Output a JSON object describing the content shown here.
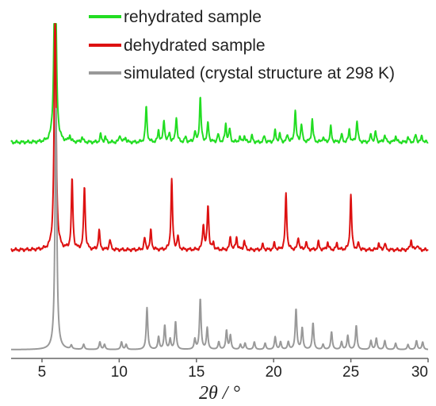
{
  "chart_data": {
    "type": "line",
    "xlabel": "2θ / °",
    "ylabel": "",
    "xlim": [
      3,
      30
    ],
    "x_ticks": [
      5,
      10,
      15,
      20,
      25,
      30
    ],
    "legend_position": "top-right",
    "grid": false,
    "y_ticks_shown": false,
    "series": [
      {
        "name": "rehydrated sample",
        "color": "#22dd22",
        "baseline": 0.04,
        "peaks": [
          [
            5.85,
            2.0
          ],
          [
            6.8,
            0.05
          ],
          [
            7.6,
            0.04
          ],
          [
            8.8,
            0.06
          ],
          [
            9.1,
            0.04
          ],
          [
            10.05,
            0.06
          ],
          [
            10.4,
            0.04
          ],
          [
            11.75,
            0.28
          ],
          [
            12.55,
            0.09
          ],
          [
            12.9,
            0.17
          ],
          [
            13.25,
            0.07
          ],
          [
            13.7,
            0.2
          ],
          [
            14.3,
            0.04
          ],
          [
            14.9,
            0.08
          ],
          [
            15.25,
            0.35
          ],
          [
            15.75,
            0.15
          ],
          [
            16.4,
            0.06
          ],
          [
            16.9,
            0.14
          ],
          [
            17.15,
            0.1
          ],
          [
            17.8,
            0.04
          ],
          [
            18.1,
            0.05
          ],
          [
            18.6,
            0.05
          ],
          [
            19.4,
            0.05
          ],
          [
            20.1,
            0.09
          ],
          [
            20.4,
            0.06
          ],
          [
            20.9,
            0.06
          ],
          [
            21.4,
            0.25
          ],
          [
            21.8,
            0.14
          ],
          [
            22.5,
            0.18
          ],
          [
            23.2,
            0.04
          ],
          [
            23.7,
            0.12
          ],
          [
            24.4,
            0.06
          ],
          [
            24.9,
            0.1
          ],
          [
            25.4,
            0.17
          ],
          [
            26.3,
            0.06
          ],
          [
            26.6,
            0.08
          ],
          [
            27.2,
            0.06
          ],
          [
            27.9,
            0.05
          ],
          [
            28.7,
            0.04
          ],
          [
            29.2,
            0.06
          ],
          [
            29.6,
            0.05
          ]
        ]
      },
      {
        "name": "dehydrated sample",
        "color": "#dd1111",
        "baseline": 0.03,
        "peaks": [
          [
            5.85,
            2.0
          ],
          [
            6.95,
            0.55
          ],
          [
            7.75,
            0.5
          ],
          [
            8.7,
            0.15
          ],
          [
            9.4,
            0.08
          ],
          [
            11.65,
            0.09
          ],
          [
            12.05,
            0.15
          ],
          [
            13.4,
            0.55
          ],
          [
            13.8,
            0.1
          ],
          [
            15.45,
            0.2
          ],
          [
            15.75,
            0.35
          ],
          [
            16.1,
            0.05
          ],
          [
            17.2,
            0.1
          ],
          [
            17.6,
            0.1
          ],
          [
            18.1,
            0.07
          ],
          [
            19.3,
            0.04
          ],
          [
            20.05,
            0.05
          ],
          [
            20.8,
            0.44
          ],
          [
            21.6,
            0.1
          ],
          [
            22.1,
            0.06
          ],
          [
            22.9,
            0.06
          ],
          [
            23.5,
            0.06
          ],
          [
            24.1,
            0.05
          ],
          [
            25.0,
            0.43
          ],
          [
            25.5,
            0.05
          ],
          [
            26.8,
            0.05
          ],
          [
            27.2,
            0.05
          ],
          [
            28.9,
            0.08
          ],
          [
            29.3,
            0.04
          ]
        ]
      },
      {
        "name": "simulated (crystal structure at 298 K)",
        "color": "#999999",
        "baseline": 0.0,
        "peaks": [
          [
            5.9,
            1.9
          ],
          [
            6.9,
            0.03
          ],
          [
            7.7,
            0.04
          ],
          [
            8.75,
            0.06
          ],
          [
            9.05,
            0.04
          ],
          [
            10.15,
            0.06
          ],
          [
            10.45,
            0.04
          ],
          [
            11.8,
            0.33
          ],
          [
            12.55,
            0.1
          ],
          [
            12.95,
            0.19
          ],
          [
            13.3,
            0.08
          ],
          [
            13.65,
            0.22
          ],
          [
            14.9,
            0.08
          ],
          [
            15.25,
            0.4
          ],
          [
            15.7,
            0.17
          ],
          [
            16.45,
            0.06
          ],
          [
            16.95,
            0.15
          ],
          [
            17.2,
            0.11
          ],
          [
            17.85,
            0.04
          ],
          [
            18.15,
            0.05
          ],
          [
            18.75,
            0.06
          ],
          [
            19.45,
            0.05
          ],
          [
            20.1,
            0.1
          ],
          [
            20.45,
            0.06
          ],
          [
            20.95,
            0.06
          ],
          [
            21.45,
            0.32
          ],
          [
            21.85,
            0.17
          ],
          [
            22.55,
            0.21
          ],
          [
            23.2,
            0.04
          ],
          [
            23.75,
            0.14
          ],
          [
            24.4,
            0.06
          ],
          [
            24.8,
            0.11
          ],
          [
            25.35,
            0.19
          ],
          [
            26.3,
            0.07
          ],
          [
            26.65,
            0.09
          ],
          [
            27.2,
            0.07
          ],
          [
            27.9,
            0.05
          ],
          [
            28.7,
            0.04
          ],
          [
            29.25,
            0.07
          ],
          [
            29.65,
            0.06
          ]
        ]
      }
    ]
  }
}
